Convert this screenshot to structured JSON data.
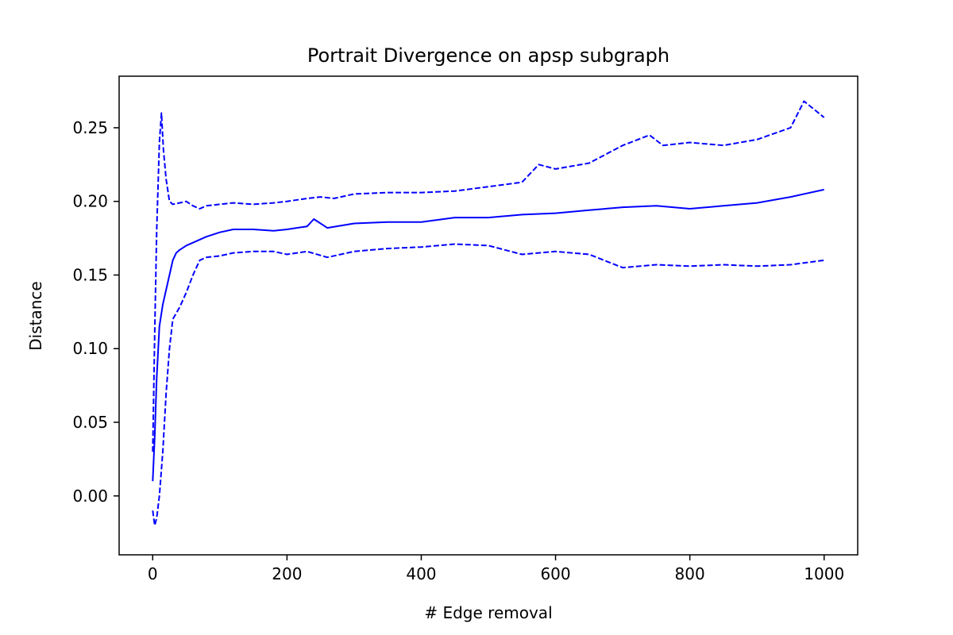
{
  "chart_data": {
    "type": "line",
    "title": "Portrait Divergence on apsp subgraph",
    "xlabel": "# Edge removal",
    "ylabel": "Distance",
    "xlim": [
      -50,
      1050
    ],
    "ylim": [
      -0.04,
      0.285
    ],
    "xticks": [
      0,
      200,
      400,
      600,
      800,
      1000
    ],
    "xtick_labels": [
      "0",
      "200",
      "400",
      "600",
      "800",
      "1000"
    ],
    "yticks": [
      0.0,
      0.05,
      0.1,
      0.15,
      0.2,
      0.25
    ],
    "ytick_labels": [
      "0.00",
      "0.05",
      "0.10",
      "0.15",
      "0.20",
      "0.25"
    ],
    "grid": false,
    "color": "#0000ff",
    "series": [
      {
        "style": "solid",
        "x": [
          0,
          3,
          6,
          10,
          15,
          20,
          25,
          30,
          35,
          40,
          50,
          60,
          70,
          80,
          100,
          120,
          150,
          180,
          200,
          230,
          240,
          260,
          300,
          350,
          400,
          450,
          500,
          550,
          600,
          650,
          700,
          750,
          800,
          850,
          900,
          950,
          1000
        ],
        "y": [
          0.01,
          0.04,
          0.08,
          0.115,
          0.13,
          0.14,
          0.15,
          0.16,
          0.165,
          0.167,
          0.17,
          0.172,
          0.174,
          0.176,
          0.179,
          0.181,
          0.181,
          0.18,
          0.181,
          0.183,
          0.188,
          0.182,
          0.185,
          0.186,
          0.186,
          0.189,
          0.189,
          0.191,
          0.192,
          0.194,
          0.196,
          0.197,
          0.195,
          0.197,
          0.199,
          0.203,
          0.208
        ]
      },
      {
        "style": "dashed",
        "x": [
          0,
          3,
          6,
          10,
          13,
          16,
          20,
          25,
          30,
          40,
          50,
          60,
          70,
          80,
          100,
          120,
          150,
          180,
          200,
          230,
          250,
          270,
          300,
          350,
          400,
          450,
          500,
          550,
          575,
          600,
          650,
          700,
          740,
          760,
          800,
          850,
          900,
          950,
          970,
          1000
        ],
        "y": [
          0.03,
          0.11,
          0.18,
          0.24,
          0.26,
          0.235,
          0.215,
          0.2,
          0.198,
          0.199,
          0.2,
          0.197,
          0.195,
          0.197,
          0.198,
          0.199,
          0.198,
          0.199,
          0.2,
          0.202,
          0.203,
          0.202,
          0.205,
          0.206,
          0.206,
          0.207,
          0.21,
          0.213,
          0.225,
          0.222,
          0.226,
          0.238,
          0.245,
          0.238,
          0.24,
          0.238,
          0.242,
          0.25,
          0.268,
          0.257
        ]
      },
      {
        "style": "dashed",
        "x": [
          0,
          3,
          6,
          10,
          15,
          20,
          25,
          30,
          40,
          50,
          60,
          70,
          80,
          100,
          120,
          150,
          180,
          200,
          230,
          260,
          300,
          350,
          400,
          450,
          500,
          550,
          600,
          650,
          700,
          750,
          800,
          850,
          900,
          950,
          1000
        ],
        "y": [
          -0.01,
          -0.02,
          -0.015,
          0.0,
          0.03,
          0.07,
          0.1,
          0.12,
          0.128,
          0.138,
          0.15,
          0.16,
          0.162,
          0.163,
          0.165,
          0.166,
          0.166,
          0.164,
          0.166,
          0.162,
          0.166,
          0.168,
          0.169,
          0.171,
          0.17,
          0.164,
          0.166,
          0.164,
          0.155,
          0.157,
          0.156,
          0.157,
          0.156,
          0.157,
          0.16
        ]
      }
    ]
  }
}
